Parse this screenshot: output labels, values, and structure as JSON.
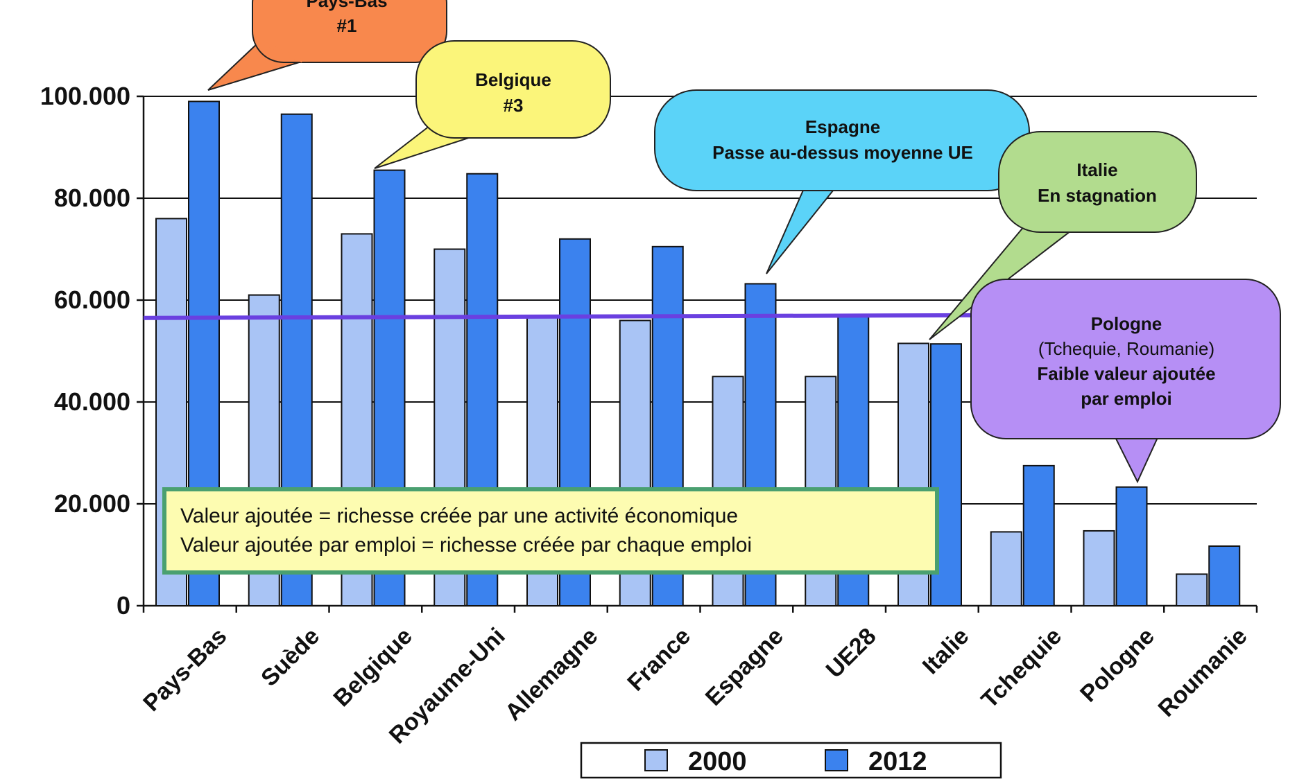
{
  "chart_data": {
    "type": "bar",
    "title": "",
    "xlabel": "",
    "ylabel": "",
    "ylim": [
      0,
      100000
    ],
    "y_ticks": [
      "0",
      "20.000",
      "40.000",
      "60.000",
      "80.000",
      "100.000"
    ],
    "y_tick_values": [
      0,
      20000,
      40000,
      60000,
      80000,
      100000
    ],
    "categories": [
      "Pays-Bas",
      "Suède",
      "Belgique",
      "Royaume-Uni",
      "Allemagne",
      "France",
      "Espagne",
      "UE28",
      "Italie",
      "Tchequie",
      "Pologne",
      "Roumanie"
    ],
    "series": [
      {
        "name": "2000",
        "color": "#a9c4f5",
        "values": [
          76000,
          61000,
          73000,
          70000,
          57000,
          56000,
          45000,
          45000,
          51500,
          14500,
          14700,
          6200
        ]
      },
      {
        "name": "2012",
        "color": "#3b82ee",
        "values": [
          99000,
          96500,
          85500,
          84800,
          72000,
          70500,
          63200,
          57000,
          51400,
          27500,
          23300,
          11700
        ]
      }
    ],
    "average_line": {
      "value": 56500,
      "color": "#6a40e0"
    },
    "grid": true,
    "legend_position": "bottom-center"
  },
  "annotations": [
    {
      "id": "pays-bas",
      "lines": [
        "Pays-Bas",
        "#1"
      ],
      "bold_lines": [
        0,
        1
      ],
      "fill": "#f8884d",
      "points_to": "Pays-Bas"
    },
    {
      "id": "belgique",
      "lines": [
        "Belgique",
        "#3"
      ],
      "bold_lines": [
        0,
        1
      ],
      "fill": "#fbf57a",
      "points_to": "Belgique"
    },
    {
      "id": "espagne",
      "lines": [
        "Espagne",
        "Passe au-dessus moyenne UE"
      ],
      "bold_lines": [
        0,
        1
      ],
      "fill": "#5bd3f8",
      "points_to": "Espagne"
    },
    {
      "id": "italie",
      "lines": [
        "Italie",
        "En stagnation"
      ],
      "bold_lines": [
        0,
        1
      ],
      "fill": "#b2dc8e",
      "points_to": "Italie"
    },
    {
      "id": "pologne",
      "lines": [
        "Pologne",
        "(Tchequie, Roumanie)",
        "Faible valeur ajoutée",
        "par emploi"
      ],
      "bold_lines": [
        0,
        2,
        3
      ],
      "fill": "#b68ff5",
      "points_to": "Pologne"
    }
  ],
  "info_box": {
    "lines": [
      "Valeur ajoutée = richesse créée par une activité économique",
      "Valeur ajoutée par emploi = richesse créée par chaque emploi"
    ],
    "fill": "#fdfcb1",
    "border": "#4aa070"
  }
}
